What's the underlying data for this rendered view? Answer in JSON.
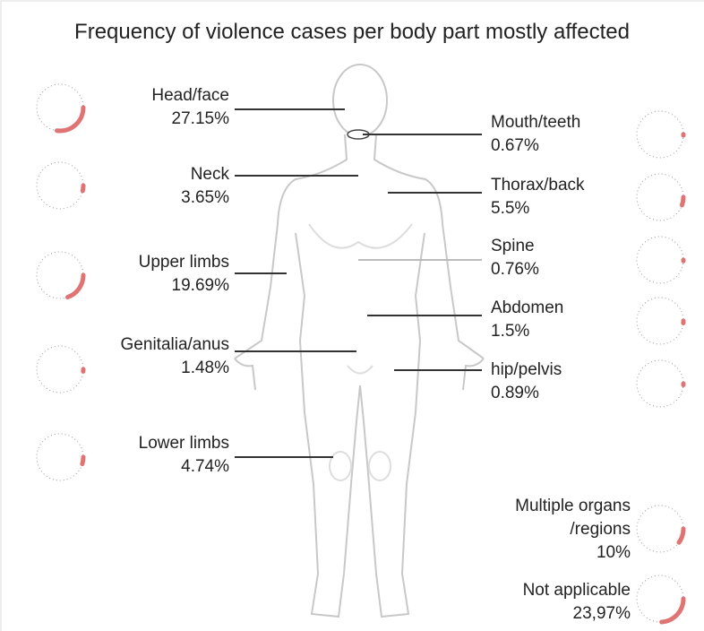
{
  "chart_data": {
    "type": "radial",
    "title": "Frequency of violence cases per body part mostly affected",
    "categories": [
      "Head/face",
      "Neck",
      "Upper limbs",
      "Genitalia/anus",
      "Lower limbs",
      "Mouth/teeth",
      "Thorax/back",
      "Spine",
      "Abdomen",
      "hip/pelvis",
      "Multiple organs /regions",
      "Not applicable"
    ],
    "values": [
      27.15,
      3.65,
      19.69,
      1.48,
      4.74,
      0.67,
      5.5,
      0.76,
      1.5,
      0.89,
      10,
      23.97
    ],
    "value_labels": [
      "27.15%",
      "3.65%",
      "19.69%",
      "1.48%",
      "4.74%",
      "0.67%",
      "5.5%",
      "0.76%",
      "1.5%",
      "0.89%",
      "10%",
      "23,97%"
    ],
    "color": "#e07474"
  }
}
